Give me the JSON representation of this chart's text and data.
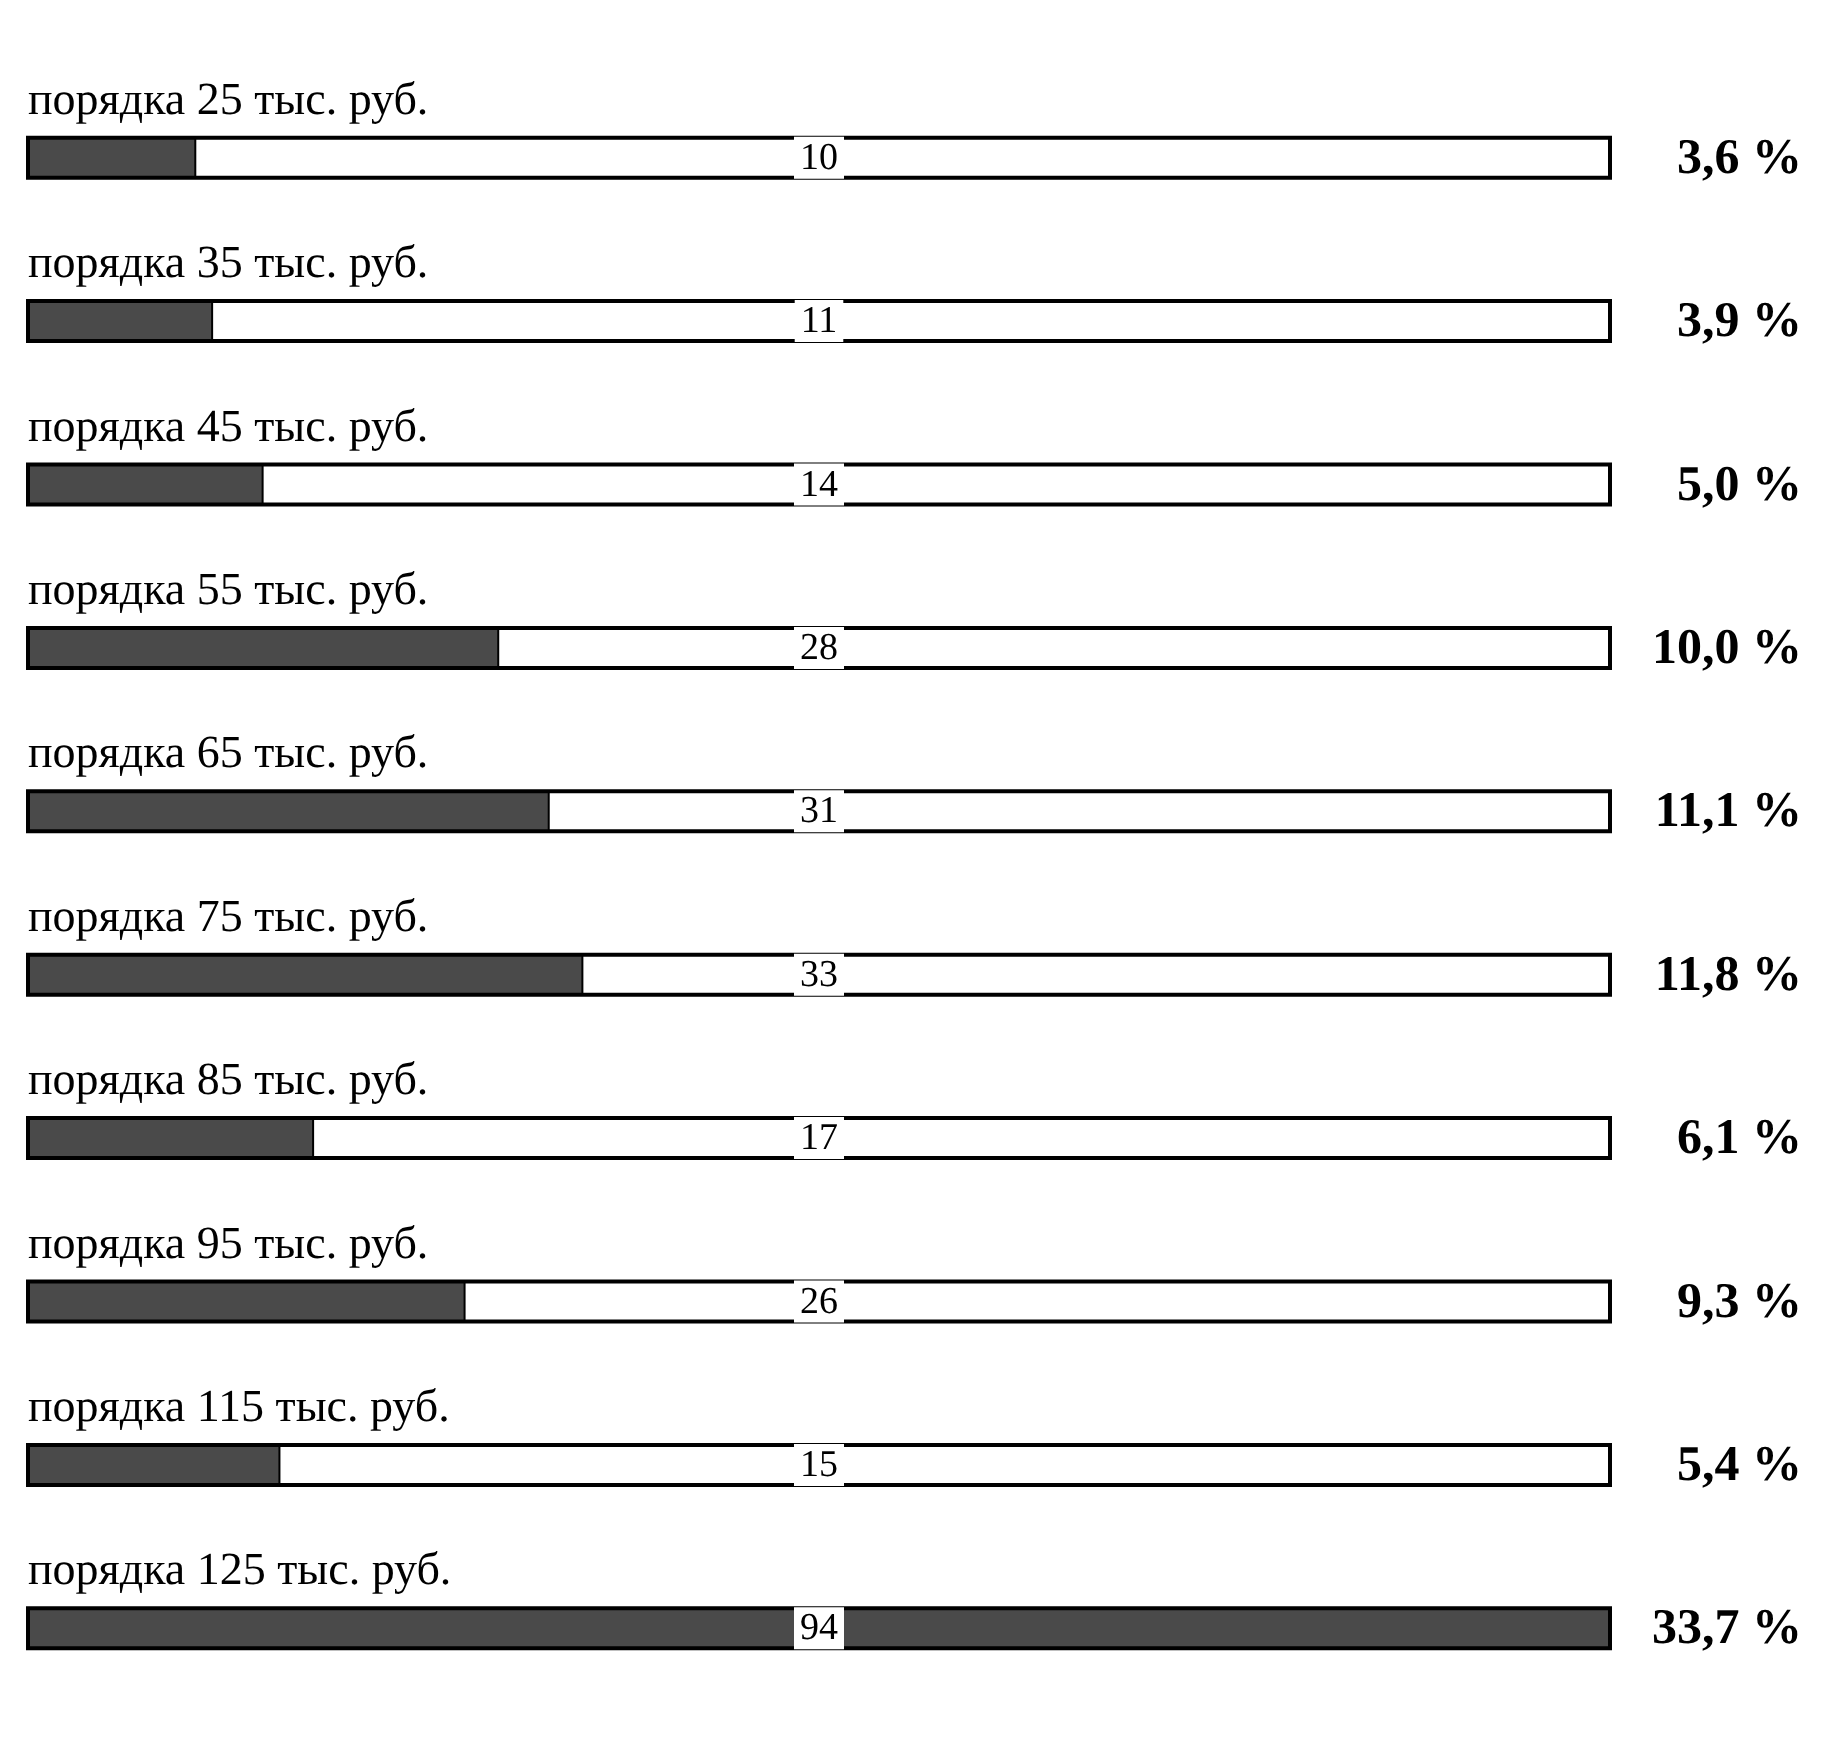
{
  "chart_data": {
    "type": "bar",
    "orientation": "horizontal",
    "categories": [
      "порядка 25 тыс. руб.",
      "порядка 35 тыс. руб.",
      "порядка 45 тыс. руб.",
      "порядка 55 тыс. руб.",
      "порядка 65 тыс. руб.",
      "порядка 75 тыс. руб.",
      "порядка 85 тыс. руб.",
      "порядка 95 тыс. руб.",
      "порядка 115 тыс. руб.",
      "порядка 125 тыс. руб."
    ],
    "values": [
      10,
      11,
      14,
      28,
      31,
      33,
      17,
      26,
      15,
      94
    ],
    "color": "#4a4a4a",
    "xlim": [
      0,
      94
    ],
    "data_labels": true,
    "tick_labels": "y",
    "annotations": [
      "3,6 %",
      "3,9 %",
      "5,0 %",
      "10,0 %",
      "11,1 %",
      "11,8 %",
      "6,1 %",
      "9,3 %",
      "5,4 %",
      "33,7 %"
    ]
  }
}
